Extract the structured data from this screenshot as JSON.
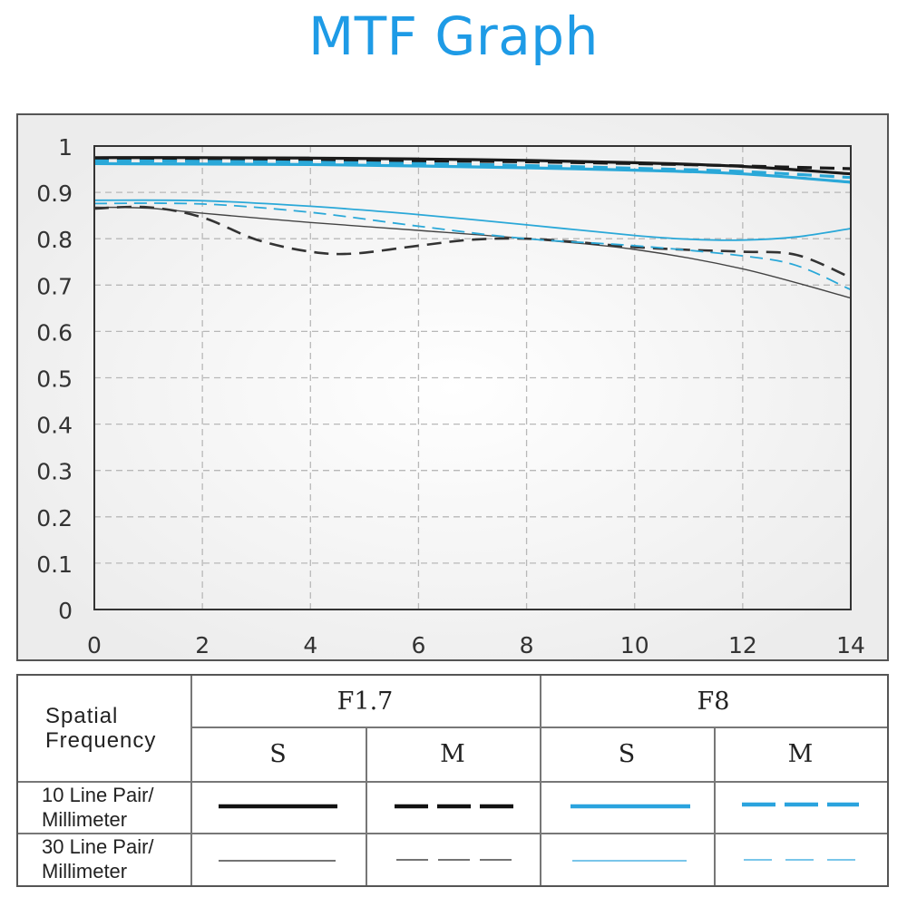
{
  "title": "MTF Graph",
  "chart_data": {
    "type": "line",
    "x_ticks": [
      "0",
      "2",
      "4",
      "6",
      "8",
      "10",
      "12",
      "14"
    ],
    "y_ticks": [
      "0",
      "0.1",
      "0.2",
      "0.3",
      "0.4",
      "0.5",
      "0.6",
      "0.7",
      "0.8",
      "0.9",
      "1"
    ],
    "xlim": [
      0,
      14
    ],
    "ylim": [
      0,
      1
    ],
    "grid": true,
    "series": [
      {
        "color": "#1a1a1a",
        "dash": false,
        "width": 3.2,
        "x": [
          0,
          2,
          4,
          6,
          8,
          10,
          12,
          14
        ],
        "y": [
          0.975,
          0.975,
          0.974,
          0.972,
          0.969,
          0.964,
          0.956,
          0.94
        ]
      },
      {
        "color": "#1a1a1a",
        "dash": true,
        "width": 3.2,
        "x": [
          0,
          2,
          4,
          6,
          8,
          10,
          12,
          14
        ],
        "y": [
          0.97,
          0.97,
          0.969,
          0.968,
          0.966,
          0.962,
          0.957,
          0.951
        ]
      },
      {
        "color": "#2aa8d8",
        "dash": false,
        "width": 3.2,
        "x": [
          0,
          2,
          4,
          6,
          8,
          10,
          12,
          14
        ],
        "y": [
          0.962,
          0.961,
          0.96,
          0.957,
          0.953,
          0.948,
          0.94,
          0.922
        ]
      },
      {
        "color": "#2aa8d8",
        "dash": true,
        "width": 3.2,
        "x": [
          0,
          2,
          4,
          6,
          8,
          10,
          12,
          14
        ],
        "y": [
          0.968,
          0.967,
          0.965,
          0.962,
          0.958,
          0.952,
          0.945,
          0.932
        ]
      },
      {
        "color": "#444444",
        "dash": false,
        "width": 1.4,
        "x": [
          0,
          1,
          2,
          4,
          6,
          8,
          10,
          12,
          14
        ],
        "y": [
          0.868,
          0.866,
          0.855,
          0.835,
          0.818,
          0.8,
          0.777,
          0.735,
          0.672
        ]
      },
      {
        "color": "#333333",
        "dash": true,
        "width": 2.6,
        "x": [
          0,
          1,
          2,
          3,
          4,
          4.8,
          6,
          7,
          8,
          9,
          10,
          11,
          12,
          13,
          14
        ],
        "y": [
          0.865,
          0.868,
          0.846,
          0.798,
          0.772,
          0.768,
          0.785,
          0.798,
          0.8,
          0.792,
          0.782,
          0.776,
          0.772,
          0.765,
          0.716
        ]
      },
      {
        "color": "#2aa8d8",
        "dash": false,
        "width": 1.8,
        "x": [
          0,
          2,
          4,
          6,
          8,
          10,
          11,
          12,
          13,
          14
        ],
        "y": [
          0.883,
          0.882,
          0.87,
          0.852,
          0.83,
          0.807,
          0.799,
          0.797,
          0.804,
          0.822
        ]
      },
      {
        "color": "#2aa8d8",
        "dash": true,
        "width": 1.8,
        "x": [
          0,
          2,
          4,
          6,
          8,
          10,
          12,
          13,
          14
        ],
        "y": [
          0.876,
          0.875,
          0.857,
          0.827,
          0.8,
          0.785,
          0.763,
          0.742,
          0.69
        ]
      }
    ]
  },
  "legend": {
    "spatial_frequency": "Spatial\nFrequency",
    "group_f17": "F1.7",
    "group_f8": "F8",
    "col_s1": "S",
    "col_m1": "M",
    "col_s2": "S",
    "col_m2": "M",
    "row_10": "10 Line Pair/\nMillimeter",
    "row_30": "30 Line Pair/\nMillimeter",
    "colors": {
      "black": "#111111",
      "blue": "#2aa3de"
    }
  }
}
